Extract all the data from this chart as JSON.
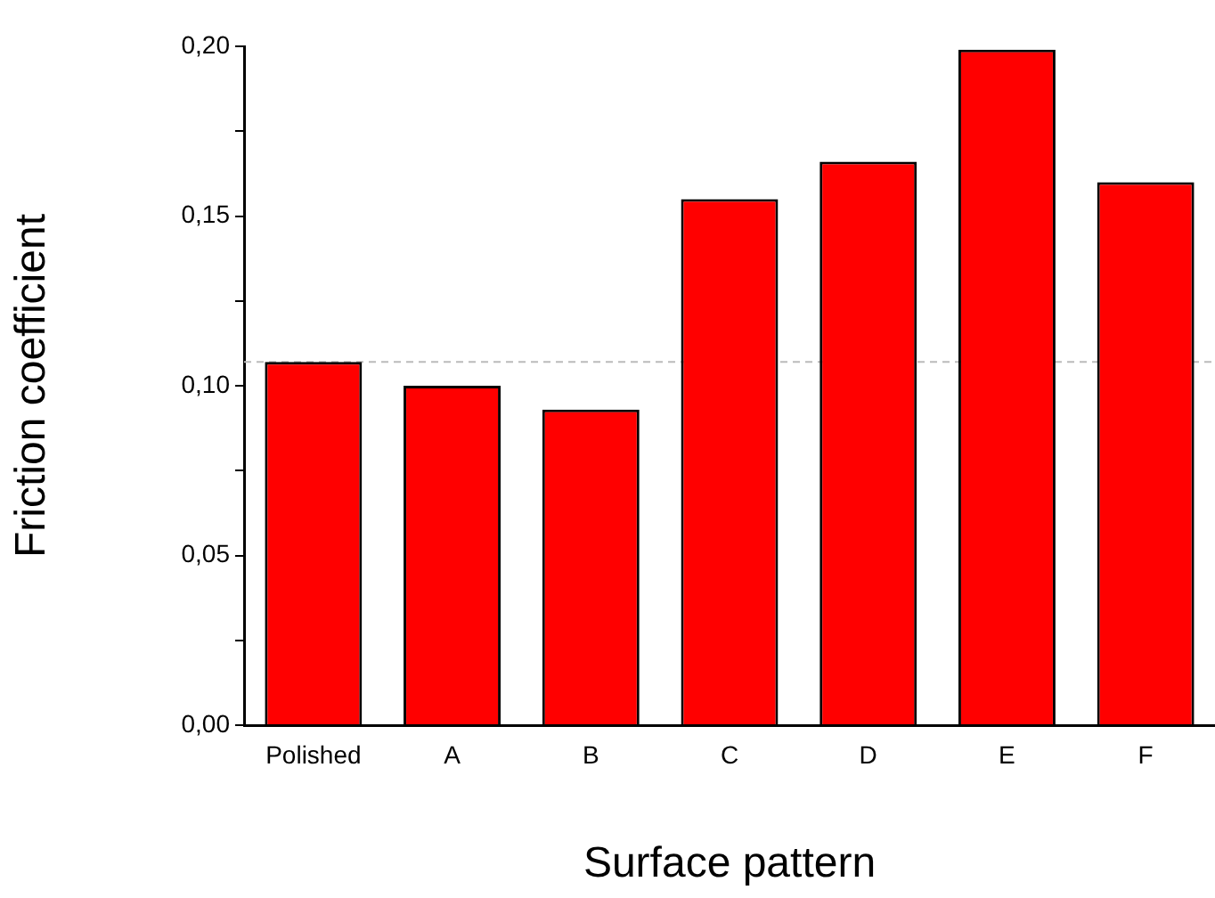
{
  "chart_data": {
    "type": "bar",
    "xlabel": "Surface pattern",
    "ylabel": "Friction coefficient",
    "categories": [
      "Polished",
      "A",
      "B",
      "C",
      "D",
      "E",
      "F"
    ],
    "values": [
      0.107,
      0.1,
      0.093,
      0.155,
      0.166,
      0.199,
      0.16
    ],
    "color": "#ff0000",
    "ylim": [
      0,
      0.2
    ],
    "yticks": [
      {
        "value": 0,
        "label": "0,00"
      },
      {
        "value": 0.025,
        "label": null
      },
      {
        "value": 0.05,
        "label": "0,05"
      },
      {
        "value": 0.075,
        "label": null
      },
      {
        "value": 0.1,
        "label": "0,10"
      },
      {
        "value": 0.125,
        "label": null
      },
      {
        "value": 0.15,
        "label": "0,15"
      },
      {
        "value": 0.175,
        "label": null
      },
      {
        "value": 0.2,
        "label": "0,20"
      }
    ],
    "ref_lines": [
      {
        "axis": "y",
        "value": 0.107,
        "color": "#bbbbbb",
        "line_style": "dashed"
      }
    ],
    "grid": false,
    "legend": false
  }
}
